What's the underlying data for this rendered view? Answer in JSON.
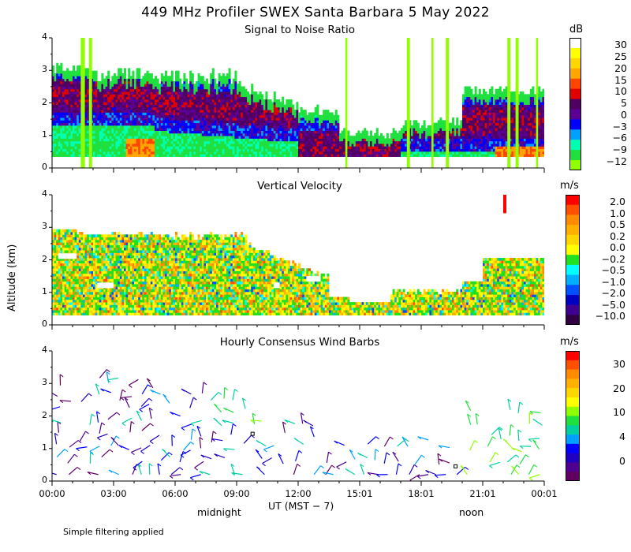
{
  "title": "449 MHz Profiler SWEX Santa Barbara  5 May 2022",
  "footer": "Simple filtering applied",
  "y_axis_label": "Altitude (km)",
  "x_axis": {
    "label": "UT  (MST − 7)",
    "midnight_label": "midnight",
    "noon_label": "noon",
    "ticks": [
      "00:00",
      "03:00",
      "06:00",
      "09:00",
      "12:00",
      "15:01",
      "18:01",
      "21:01",
      "00:01"
    ]
  },
  "chart_data": [
    {
      "type": "heatmap",
      "title": "Signal to Noise Ratio",
      "colorbar_unit": "dB",
      "colorbar_ticks": [
        "30",
        "25",
        "20",
        "15",
        "10",
        "5",
        "0",
        "−3",
        "−6",
        "−9",
        "−12"
      ],
      "colors": [
        "#ffffff",
        "#ffff00",
        "#ffd700",
        "#ffa500",
        "#ff4500",
        "#e00000",
        "#500060",
        "#5a0094",
        "#0000ff",
        "#00a0ff",
        "#00ffb0",
        "#20e040",
        "#90ff00"
      ],
      "ylim": [
        0,
        4
      ],
      "yticks": [
        "0",
        "1",
        "2",
        "3",
        "4"
      ],
      "x_hours_range": [
        0,
        24
      ],
      "description": "SNR vs time and altitude"
    },
    {
      "type": "heatmap",
      "title": "Vertical Velocity",
      "colorbar_unit": "m/s",
      "colorbar_ticks": [
        "2.0",
        "1.0",
        "0.5",
        "0.2",
        "0.0",
        "−0.2",
        "−0.5",
        "−1.0",
        "−2.0",
        "−5.0",
        "−10.0"
      ],
      "colors": [
        "#ff0000",
        "#ff5000",
        "#ff8c00",
        "#ffb000",
        "#ffd700",
        "#ffff00",
        "#20e020",
        "#00ffff",
        "#00b0ff",
        "#0050ff",
        "#0000c0",
        "#400090",
        "#300040"
      ],
      "ylim": [
        0,
        4
      ],
      "yticks": [
        "0",
        "1",
        "2",
        "3",
        "4"
      ]
    },
    {
      "type": "scatter",
      "title": "Hourly Consensus Wind Barbs",
      "colorbar_unit": "m/s",
      "colorbar_ticks": [
        "30",
        "20",
        "10",
        "4",
        "0"
      ],
      "colors": [
        "#ff0000",
        "#ff5000",
        "#ff8c00",
        "#ffb000",
        "#ffd700",
        "#ffff00",
        "#90ff00",
        "#20e040",
        "#00d0a0",
        "#00a0ff",
        "#0000ff",
        "#2000c0",
        "#500090",
        "#600060"
      ],
      "ylim": [
        0,
        4
      ],
      "yticks": [
        "0",
        "1",
        "2",
        "3",
        "4"
      ]
    }
  ]
}
